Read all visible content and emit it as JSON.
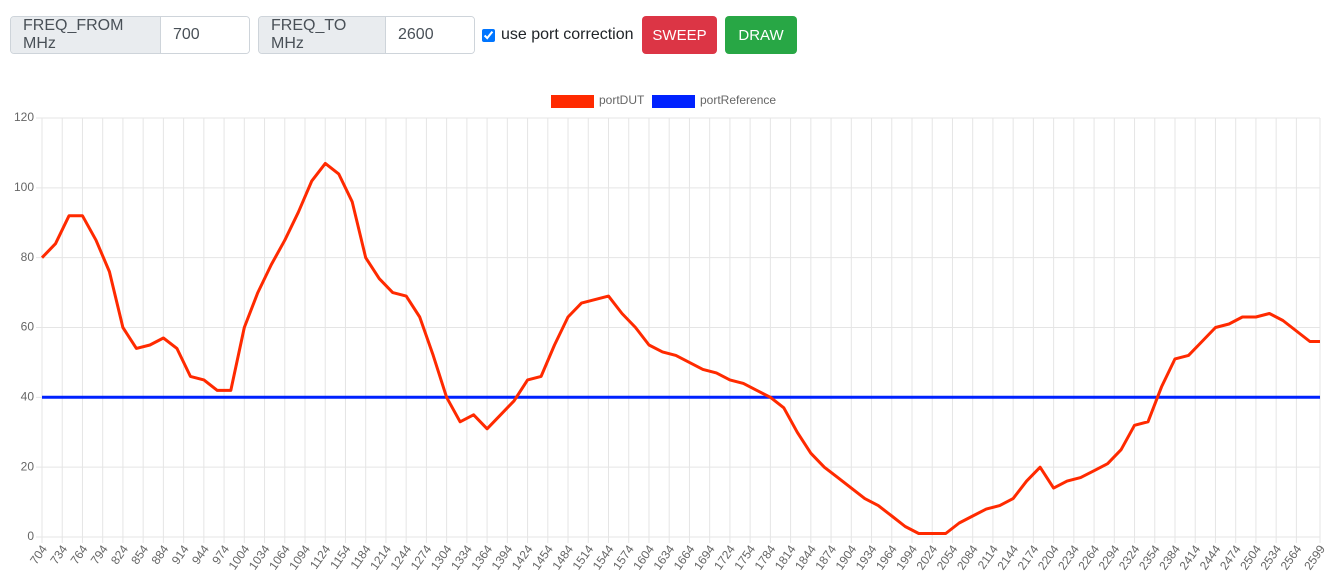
{
  "controls": {
    "freq_from": {
      "label": "FREQ_FROM MHz",
      "value": "700"
    },
    "freq_to": {
      "label": "FREQ_TO MHz",
      "value": "2600"
    },
    "port_correction": {
      "label": "use port correction",
      "checked": true
    },
    "buttons": [
      "SWEEP",
      "DRAW"
    ]
  },
  "chart_data": {
    "type": "line",
    "x": [
      704,
      724,
      744,
      764,
      784,
      804,
      824,
      844,
      864,
      884,
      904,
      924,
      944,
      964,
      984,
      1004,
      1024,
      1044,
      1064,
      1084,
      1104,
      1124,
      1144,
      1164,
      1184,
      1204,
      1224,
      1244,
      1264,
      1284,
      1304,
      1324,
      1344,
      1364,
      1384,
      1404,
      1424,
      1444,
      1464,
      1484,
      1504,
      1524,
      1544,
      1564,
      1584,
      1604,
      1624,
      1644,
      1664,
      1684,
      1704,
      1724,
      1744,
      1764,
      1784,
      1804,
      1824,
      1844,
      1864,
      1884,
      1904,
      1924,
      1944,
      1964,
      1984,
      2004,
      2024,
      2044,
      2064,
      2084,
      2104,
      2124,
      2144,
      2164,
      2184,
      2204,
      2224,
      2244,
      2264,
      2284,
      2304,
      2324,
      2344,
      2364,
      2384,
      2404,
      2424,
      2444,
      2464,
      2484,
      2504,
      2524,
      2544,
      2564,
      2584,
      2599
    ],
    "series": [
      {
        "name": "portDUT",
        "color": "#ff2a00",
        "values": [
          80,
          84,
          92,
          92,
          85,
          76,
          60,
          54,
          55,
          57,
          54,
          46,
          45,
          42,
          42,
          60,
          70,
          78,
          85,
          93,
          102,
          107,
          104,
          96,
          80,
          74,
          70,
          69,
          63,
          52,
          40,
          33,
          35,
          31,
          35,
          39,
          45,
          46,
          55,
          63,
          67,
          68,
          69,
          64,
          60,
          55,
          53,
          52,
          50,
          48,
          47,
          45,
          44,
          42,
          40,
          37,
          30,
          24,
          20,
          17,
          14,
          11,
          9,
          6,
          3,
          1,
          1,
          1,
          4,
          6,
          8,
          9,
          11,
          16,
          20,
          14,
          16,
          17,
          19,
          21,
          25,
          32,
          33,
          43,
          51,
          52,
          56,
          60,
          61,
          63,
          63,
          64,
          62,
          59,
          56,
          56
        ]
      },
      {
        "name": "portReference",
        "color": "#0022ff",
        "values": [
          40,
          40,
          40,
          40,
          40,
          40,
          40,
          40,
          40,
          40,
          40,
          40,
          40,
          40,
          40,
          40,
          40,
          40,
          40,
          40,
          40,
          40,
          40,
          40,
          40,
          40,
          40,
          40,
          40,
          40,
          40,
          40,
          40,
          40,
          40,
          40,
          40,
          40,
          40,
          40,
          40,
          40,
          40,
          40,
          40,
          40,
          40,
          40,
          40,
          40,
          40,
          40,
          40,
          40,
          40,
          40,
          40,
          40,
          40,
          40,
          40,
          40,
          40,
          40,
          40,
          40,
          40,
          40,
          40,
          40,
          40,
          40,
          40,
          40,
          40,
          40,
          40,
          40,
          40,
          40,
          40,
          40,
          40,
          40,
          40,
          40,
          40,
          40,
          40,
          40,
          40,
          40,
          40,
          40,
          40,
          40
        ]
      }
    ],
    "xlim": [
      704,
      2599
    ],
    "xticks": [
      704,
      734,
      764,
      794,
      824,
      854,
      884,
      914,
      944,
      974,
      1004,
      1034,
      1064,
      1094,
      1124,
      1154,
      1184,
      1214,
      1244,
      1274,
      1304,
      1334,
      1364,
      1394,
      1424,
      1454,
      1484,
      1514,
      1544,
      1574,
      1604,
      1634,
      1664,
      1694,
      1724,
      1754,
      1784,
      1814,
      1844,
      1874,
      1904,
      1934,
      1964,
      1994,
      2024,
      2054,
      2084,
      2114,
      2144,
      2174,
      2204,
      2234,
      2264,
      2294,
      2324,
      2354,
      2384,
      2414,
      2444,
      2474,
      2504,
      2534,
      2564,
      2599
    ],
    "ylim": [
      0,
      120
    ],
    "yticks": [
      0,
      20,
      40,
      60,
      80,
      100,
      120
    ],
    "grid": true,
    "legend": "top"
  }
}
